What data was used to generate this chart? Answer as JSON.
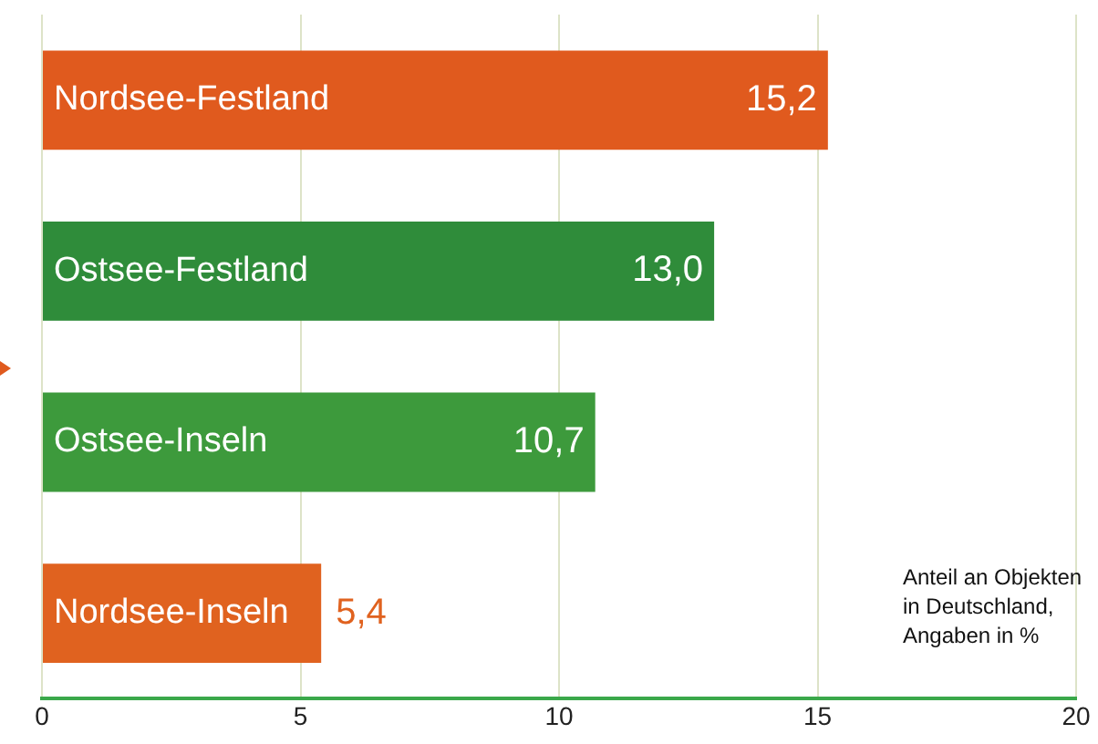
{
  "chart_data": {
    "type": "bar",
    "orientation": "horizontal",
    "categories": [
      "Nordsee-Festland",
      "Ostsee-Festland",
      "Ostsee-Inseln",
      "Nordsee-Inseln"
    ],
    "values": [
      15.2,
      13.0,
      10.7,
      5.4
    ],
    "colors": [
      "#e05a1e",
      "#2f8c3a",
      "#3d9a3c",
      "#e0621f"
    ],
    "value_labels": [
      "15,2",
      "13,0",
      "10,7",
      "5,4"
    ],
    "xlim": [
      0,
      20
    ],
    "xticks": [
      0,
      5,
      10,
      15,
      20
    ],
    "grid": "x",
    "tick_labels": "x",
    "legend": false,
    "annotations": [
      "Anteil an Objekten\nin Deutschland,\nAngaben in %"
    ]
  }
}
